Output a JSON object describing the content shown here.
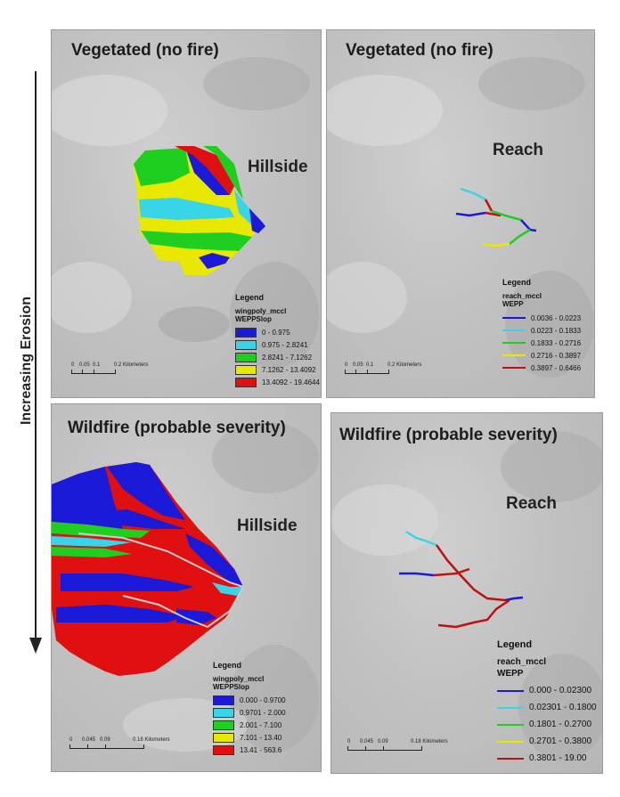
{
  "axis": {
    "label": "Increasing Erosion"
  },
  "panels": {
    "tl": {
      "title": "Vegetated (no fire)",
      "label": "Hillside",
      "legend": {
        "title": "Legend",
        "layer": "wingpoly_mccl",
        "field": "WEPPSlop",
        "items": [
          {
            "label": "0 - 0.975",
            "color": "#1a1ad8"
          },
          {
            "label": "0.975 - 2.8241",
            "color": "#38d4e8"
          },
          {
            "label": "2.8241 - 7.1262",
            "color": "#1fcf1f"
          },
          {
            "label": "7.1262 - 13.4092",
            "color": "#e8e800"
          },
          {
            "label": "13.4092 - 19.4644",
            "color": "#e01010"
          }
        ]
      },
      "scale": {
        "t0": "0",
        "t1": "0.05",
        "t2": "0.1",
        "t3": "0.2 Kilometers"
      }
    },
    "tr": {
      "title": "Vegetated (no fire)",
      "label": "Reach",
      "legend": {
        "title": "Legend",
        "layer": "reach_mccl",
        "field": "WEPP",
        "items": [
          {
            "label": "0.0036 - 0.0223",
            "color": "#1a1ad8"
          },
          {
            "label": "0.0223 - 0.1833",
            "color": "#38d4e8"
          },
          {
            "label": "0.1833 - 0.2716",
            "color": "#1fcf1f"
          },
          {
            "label": "0.2716 - 0.3897",
            "color": "#e8e800"
          },
          {
            "label": "0.3897 - 0.6466",
            "color": "#c01010"
          }
        ]
      },
      "scale": {
        "t0": "0",
        "t1": "0.05",
        "t2": "0.1",
        "t3": "0.2 Kilometers"
      }
    },
    "bl": {
      "title": "Wildfire (probable severity)",
      "label": "Hillside",
      "legend": {
        "title": "Legend",
        "layer": "wingpoly_mccl",
        "field": "WEPPSlop",
        "items": [
          {
            "label": "0.000 - 0.9700",
            "color": "#1a1ad8"
          },
          {
            "label": "0.9701 - 2.000",
            "color": "#38d4e8"
          },
          {
            "label": "2.001 - 7.100",
            "color": "#1fcf1f"
          },
          {
            "label": "7.101 - 13.40",
            "color": "#e8e800"
          },
          {
            "label": "13.41 - 563.6",
            "color": "#e01010"
          }
        ]
      },
      "scale": {
        "t0": "0",
        "t1": "0.045",
        "t2": "0.09",
        "t3": "0.18 Kilometers"
      }
    },
    "br": {
      "title": "Wildfire (probable severity)",
      "label": "Reach",
      "legend": {
        "title": "Legend",
        "layer": "reach_mccl",
        "field": "WEPP",
        "items": [
          {
            "label": "0.000 - 0.02300",
            "color": "#1a1ad8"
          },
          {
            "label": "0.02301 - 0.1800",
            "color": "#38d4e8"
          },
          {
            "label": "0.1801 - 0.2700",
            "color": "#1fcf1f"
          },
          {
            "label": "0.2701 - 0.3800",
            "color": "#e8e800"
          },
          {
            "label": "0.3801 - 19.00",
            "color": "#c01010"
          }
        ]
      },
      "scale": {
        "t0": "0",
        "t1": "0.045",
        "t2": "0.09",
        "t3": "0.18 Kilometers"
      }
    }
  }
}
